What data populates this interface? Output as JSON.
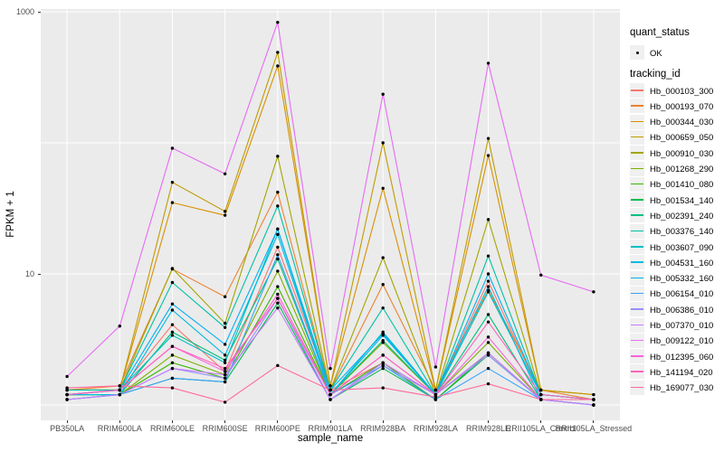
{
  "figure": {
    "panel_bg": "#EBEBEB",
    "grid_color": "#FFFFFF",
    "tick_text_color": "#4D4D4D",
    "point_color": "#000000",
    "legend_key_bg": "#F0F0F0"
  },
  "axes": {
    "x_title": "sample_name",
    "y_title": "FPKM + 1",
    "y_ticks": [
      {
        "label": "1000",
        "value": 1000
      },
      {
        "label": "10",
        "value": 10
      }
    ]
  },
  "legend": {
    "quant_status_title": "quant_status",
    "quant_status_items": [
      {
        "label": "OK",
        "marker": "black-point"
      }
    ],
    "tracking_id_title": "tracking_id"
  },
  "chart_data": {
    "type": "line",
    "title": "",
    "xlabel": "sample_name",
    "ylabel": "FPKM + 1",
    "yscale": "log10",
    "ylim": [
      1,
      1000
    ],
    "y_gridlines": [
      1000,
      100,
      10,
      1
    ],
    "grid": true,
    "legend_position": "right",
    "marker": "black dot on every point",
    "x": [
      "PB350LA",
      "RRIM600LA",
      "RRIM600LE",
      "RRIM600SE",
      "RRIM600PE",
      "RRIM901LA",
      "RRIM928BA",
      "RRIM928LA",
      "RRIM928LE",
      "RRII105LA_Control",
      "RRII105LA_Stressed"
    ],
    "series": [
      {
        "name": "Hb_000103_300",
        "color": "#F8766D",
        "values": [
          1.2,
          1.3,
          4.1,
          1.8,
          16,
          1.3,
          2.1,
          1.2,
          8.8,
          1.2,
          1.1
        ]
      },
      {
        "name": "Hb_000193_070",
        "color": "#EA8331",
        "values": [
          1.3,
          1.4,
          10.9,
          6.7,
          42,
          1.3,
          8.3,
          1.3,
          7.5,
          1.3,
          1.1
        ]
      },
      {
        "name": "Hb_000344_030",
        "color": "#D89000",
        "values": [
          1.3,
          1.3,
          35,
          28,
          386,
          1.4,
          45,
          1.3,
          80,
          1.3,
          1.2
        ]
      },
      {
        "name": "Hb_000659_050",
        "color": "#C09B00",
        "values": [
          1.3,
          1.3,
          50,
          30,
          490,
          1.4,
          100,
          1.3,
          108,
          1.3,
          1.2
        ]
      },
      {
        "name": "Hb_000910_030",
        "color": "#A3A500",
        "values": [
          1.2,
          1.3,
          11,
          4.2,
          79,
          1.3,
          13.3,
          1.2,
          26,
          1.2,
          1.1
        ]
      },
      {
        "name": "Hb_001268_290",
        "color": "#7CAE00",
        "values": [
          1.2,
          1.2,
          2.4,
          1.7,
          10.5,
          1.2,
          3.0,
          1.2,
          3.0,
          1.1,
          1.1
        ]
      },
      {
        "name": "Hb_001410_080",
        "color": "#39B600",
        "values": [
          1.2,
          1.2,
          2.1,
          1.6,
          8.0,
          1.2,
          2.1,
          1.1,
          2.5,
          1.1,
          1.0
        ]
      },
      {
        "name": "Hb_001534_140",
        "color": "#00BB4E",
        "values": [
          1.1,
          1.2,
          1.6,
          1.5,
          6.0,
          1.1,
          1.9,
          1.1,
          2.4,
          1.1,
          1.0
        ]
      },
      {
        "name": "Hb_002391_240",
        "color": "#00BF7D",
        "values": [
          1.2,
          1.2,
          3.6,
          2.2,
          13,
          1.2,
          3.1,
          1.2,
          4.9,
          1.1,
          1.1
        ]
      },
      {
        "name": "Hb_003376_140",
        "color": "#00C1A3",
        "values": [
          1.3,
          1.3,
          8.6,
          3.9,
          33,
          1.3,
          5.5,
          1.2,
          13.7,
          1.2,
          1.1
        ]
      },
      {
        "name": "Hb_003607_090",
        "color": "#00BFC4",
        "values": [
          1.2,
          1.3,
          3.4,
          2.1,
          22,
          1.2,
          3.6,
          1.2,
          7.3,
          1.2,
          1.1
        ]
      },
      {
        "name": "Hb_004531_160",
        "color": "#00BAE0",
        "values": [
          1.2,
          1.2,
          5.3,
          2.4,
          20,
          1.2,
          3.4,
          1.2,
          8.0,
          1.1,
          1.1
        ]
      },
      {
        "name": "Hb_005332_160",
        "color": "#00B0F6",
        "values": [
          1.2,
          1.3,
          5.9,
          2.9,
          22,
          1.3,
          3.5,
          1.2,
          10.0,
          1.2,
          1.1
        ]
      },
      {
        "name": "Hb_006154_010",
        "color": "#35A2FF",
        "values": [
          1.1,
          1.2,
          1.6,
          1.5,
          14,
          1.2,
          2.0,
          1.1,
          1.9,
          1.1,
          1.0
        ]
      },
      {
        "name": "Hb_006386_010",
        "color": "#9590FF",
        "values": [
          1.1,
          1.2,
          1.9,
          1.6,
          6.5,
          1.1,
          2.0,
          1.2,
          2.4,
          1.1,
          1.0
        ]
      },
      {
        "name": "Hb_007370_010",
        "color": "#C77CFF",
        "values": [
          1.1,
          1.2,
          1.9,
          1.7,
          5.5,
          1.1,
          2.1,
          1.2,
          2.5,
          1.1,
          1.0
        ]
      },
      {
        "name": "Hb_009122_010",
        "color": "#E76BF3",
        "values": [
          1.65,
          4.0,
          91,
          58,
          830,
          1.9,
          235,
          1.95,
          405,
          9.8,
          7.3
        ]
      },
      {
        "name": "Hb_012395_060",
        "color": "#FA62DB",
        "values": [
          1.2,
          1.3,
          2.8,
          1.8,
          7.0,
          1.2,
          2.4,
          1.2,
          3.3,
          1.1,
          1.1
        ]
      },
      {
        "name": "Hb_141194_020",
        "color": "#FF62BC",
        "values": [
          1.2,
          1.3,
          2.8,
          1.9,
          6.5,
          1.2,
          2.4,
          1.2,
          4.3,
          1.2,
          1.1
        ]
      },
      {
        "name": "Hb_169077_030",
        "color": "#FF6A98",
        "values": [
          1.35,
          1.4,
          1.35,
          1.05,
          2.0,
          1.3,
          1.35,
          1.15,
          1.45,
          1.1,
          1.1
        ]
      }
    ]
  }
}
